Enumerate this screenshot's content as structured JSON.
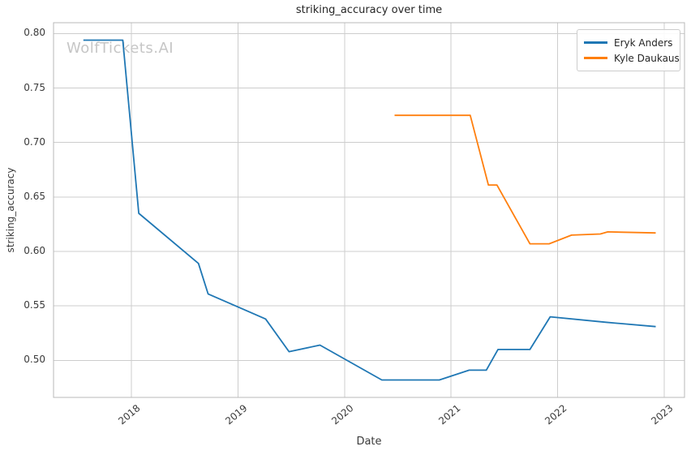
{
  "watermark": "WolfTickets.AI",
  "chart_data": {
    "type": "line",
    "title": "striking_accuracy over time",
    "xlabel": "Date",
    "ylabel": "striking_accuracy",
    "x_unit": "decimal_year",
    "xlim": [
      2017.27,
      2023.19
    ],
    "ylim": [
      0.466,
      0.81
    ],
    "xticks": [
      2018,
      2019,
      2020,
      2021,
      2022,
      2023
    ],
    "yticks": [
      0.5,
      0.55,
      0.6,
      0.65,
      0.7,
      0.75,
      0.8
    ],
    "grid": true,
    "legend_position": "upper right",
    "series": [
      {
        "name": "Eryk Anders",
        "color": "#1f77b4",
        "points": [
          [
            2017.55,
            0.794
          ],
          [
            2017.92,
            0.794
          ],
          [
            2018.07,
            0.635
          ],
          [
            2018.63,
            0.589
          ],
          [
            2018.72,
            0.561
          ],
          [
            2019.26,
            0.538
          ],
          [
            2019.48,
            0.508
          ],
          [
            2019.77,
            0.514
          ],
          [
            2020.35,
            0.482
          ],
          [
            2020.89,
            0.482
          ],
          [
            2021.17,
            0.491
          ],
          [
            2021.33,
            0.491
          ],
          [
            2021.44,
            0.51
          ],
          [
            2021.74,
            0.51
          ],
          [
            2021.93,
            0.54
          ],
          [
            2022.45,
            0.535
          ],
          [
            2022.92,
            0.531
          ]
        ]
      },
      {
        "name": "Kyle Daukaus",
        "color": "#ff7f0e",
        "points": [
          [
            2020.47,
            0.725
          ],
          [
            2021.18,
            0.725
          ],
          [
            2021.35,
            0.661
          ],
          [
            2021.43,
            0.661
          ],
          [
            2021.74,
            0.607
          ],
          [
            2021.92,
            0.607
          ],
          [
            2022.13,
            0.615
          ],
          [
            2022.4,
            0.616
          ],
          [
            2022.47,
            0.618
          ],
          [
            2022.92,
            0.617
          ]
        ]
      }
    ],
    "colors": {
      "grid": "#cdcdcd",
      "spine": "#b8b8b8",
      "tick_text": "#3a3a3a",
      "title_text": "#262626",
      "watermark": "#c6c6c6",
      "background": "#ffffff"
    }
  }
}
